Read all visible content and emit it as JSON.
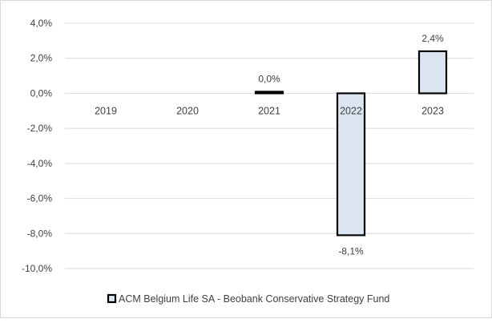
{
  "chart_data": {
    "type": "bar",
    "categories": [
      "2019",
      "2020",
      "2021",
      "2022",
      "2023"
    ],
    "series": [
      {
        "name": "ACM Belgium Life SA - Beobank Conservative Strategy Fund",
        "values": [
          null,
          null,
          0.0,
          -8.1,
          2.4
        ],
        "labels": [
          "",
          "",
          "0,0%",
          "-8,1%",
          "2,4%"
        ]
      }
    ],
    "ylim": [
      -10,
      4
    ],
    "yticks": [
      4,
      2,
      0,
      -2,
      -4,
      -6,
      -8,
      -10
    ],
    "ytick_labels": [
      "4,0%",
      "2,0%",
      "0,0%",
      "-2,0%",
      "-4,0%",
      "-6,0%",
      "-8,0%",
      "-10,0%"
    ],
    "grid": true,
    "legend_position": "bottom",
    "bar_fill": "#dce6f2",
    "bar_stroke": "#000000",
    "grid_color": "#d9d9d9"
  }
}
